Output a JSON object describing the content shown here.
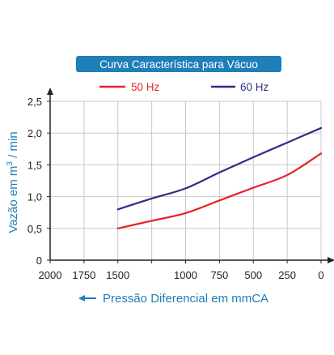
{
  "chart_data": {
    "type": "line",
    "title": "Curva Característica para Vácuo",
    "xlabel": "Pressão Diferencial em mmCA",
    "ylabel_prefix": "Vazão em m",
    "ylabel_sup": "3",
    "ylabel_suffix": " / min",
    "xlim": [
      2000,
      0
    ],
    "ylim": [
      0,
      2.5
    ],
    "x_ticks": [
      2000,
      1750,
      1500,
      1250,
      1000,
      750,
      500,
      250,
      0
    ],
    "y_ticks": [
      0,
      0.5,
      1.0,
      1.5,
      2.0,
      2.5
    ],
    "x_tick_labels": [
      "2000",
      "1750",
      "1500",
      "1000",
      "750",
      "500",
      "250",
      "0"
    ],
    "x_tick_label_values": [
      2000,
      1750,
      1500,
      1000,
      750,
      500,
      250,
      0
    ],
    "y_tick_labels": [
      "0",
      "0,5",
      "1,0",
      "1,5",
      "2,0",
      "2,5"
    ],
    "grid": true,
    "legend_position": "top",
    "series": [
      {
        "name": "50 Hz",
        "color": "#e8212a",
        "x": [
          1500,
          1250,
          1000,
          750,
          500,
          250,
          0
        ],
        "y": [
          0.5,
          0.62,
          0.74,
          0.94,
          1.14,
          1.34,
          1.68
        ]
      },
      {
        "name": "60 Hz",
        "color": "#2b2f86",
        "x": [
          1500,
          1250,
          1000,
          750,
          500,
          250,
          0
        ],
        "y": [
          0.8,
          0.97,
          1.13,
          1.38,
          1.62,
          1.85,
          2.08
        ]
      }
    ]
  },
  "colors": {
    "title_bg": "#1f7fb8",
    "title_text": "#ffffff",
    "axis_label": "#1f7fb8"
  },
  "icons": {
    "direction_arrow": "left-arrow-icon"
  }
}
